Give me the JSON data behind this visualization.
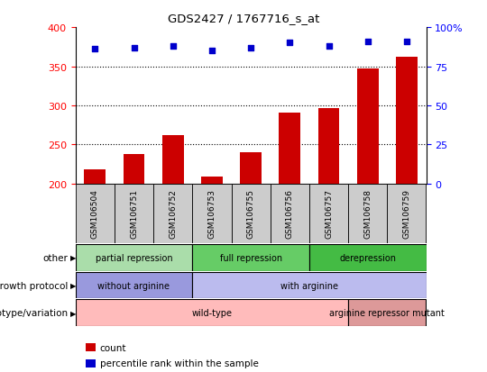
{
  "title": "GDS2427 / 1767716_s_at",
  "samples": [
    "GSM106504",
    "GSM106751",
    "GSM106752",
    "GSM106753",
    "GSM106755",
    "GSM106756",
    "GSM106757",
    "GSM106758",
    "GSM106759"
  ],
  "counts": [
    218,
    238,
    262,
    209,
    240,
    291,
    296,
    347,
    362
  ],
  "percentile_ranks": [
    86,
    87,
    88,
    85,
    87,
    90,
    88,
    91,
    91
  ],
  "ylim_left": [
    200,
    400
  ],
  "ylim_right": [
    0,
    100
  ],
  "yticks_left": [
    200,
    250,
    300,
    350,
    400
  ],
  "yticks_right": [
    0,
    25,
    50,
    75,
    100
  ],
  "bar_color": "#cc0000",
  "scatter_color": "#0000cc",
  "grid_lines": [
    250,
    300,
    350
  ],
  "annotation_rows": [
    {
      "label": "other",
      "segments": [
        {
          "text": "partial repression",
          "span": [
            0,
            3
          ],
          "color": "#aaddaa"
        },
        {
          "text": "full repression",
          "span": [
            3,
            6
          ],
          "color": "#66cc66"
        },
        {
          "text": "derepression",
          "span": [
            6,
            9
          ],
          "color": "#44bb44"
        }
      ]
    },
    {
      "label": "growth protocol",
      "segments": [
        {
          "text": "without arginine",
          "span": [
            0,
            3
          ],
          "color": "#9999dd"
        },
        {
          "text": "with arginine",
          "span": [
            3,
            9
          ],
          "color": "#bbbbee"
        }
      ]
    },
    {
      "label": "genotype/variation",
      "segments": [
        {
          "text": "wild-type",
          "span": [
            0,
            7
          ],
          "color": "#ffbbbb"
        },
        {
          "text": "arginine repressor mutant",
          "span": [
            7,
            9
          ],
          "color": "#dd9999"
        }
      ]
    }
  ],
  "legend_items": [
    {
      "color": "#cc0000",
      "label": "count"
    },
    {
      "color": "#0000cc",
      "label": "percentile rank within the sample"
    }
  ]
}
